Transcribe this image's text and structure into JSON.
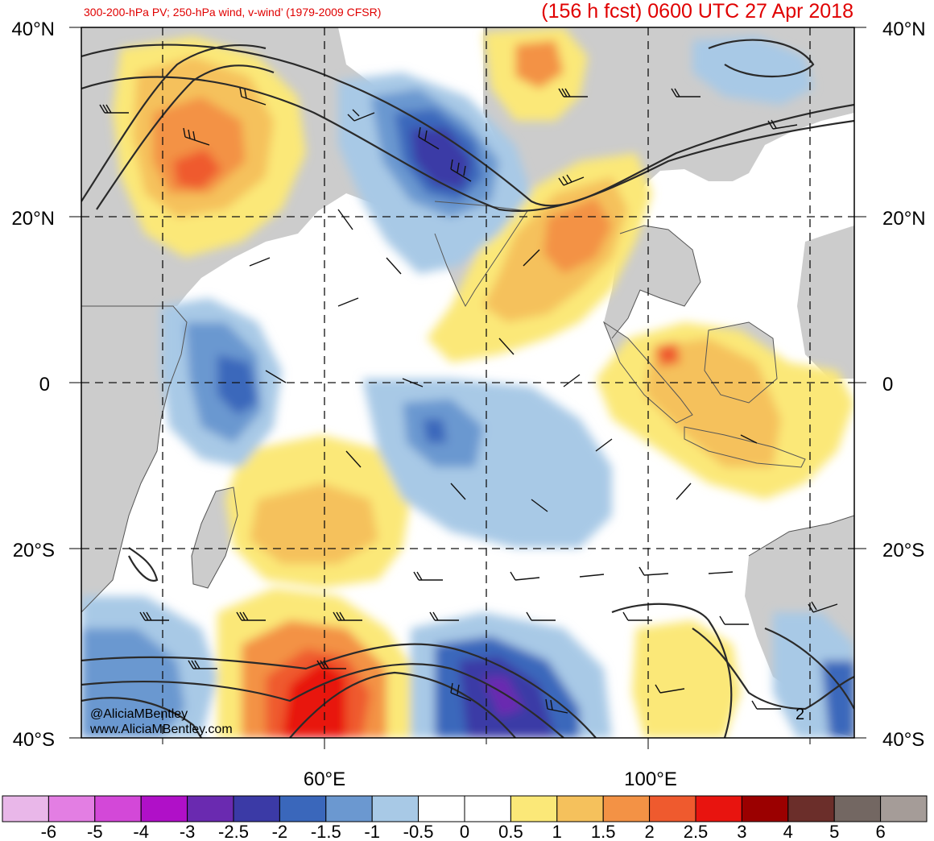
{
  "header": {
    "left_title": "300-200-hPa PV; 250-hPa wind, v-wind’ (1979-2009 CFSR)",
    "right_title": "(156 h fcst) 0600 UTC 27 Apr 2018"
  },
  "axes": {
    "lat_labels": [
      "40°N",
      "20°N",
      "0",
      "20°S",
      "40°S"
    ],
    "lon_labels": [
      "60°E",
      "100°E"
    ]
  },
  "contour_label": "2",
  "credits": {
    "handle": "@AliciaMBentley",
    "site": "www.AliciaMBentley.com"
  },
  "colorbar": {
    "labels": [
      "-6",
      "-5",
      "-4",
      "-3",
      "-2.5",
      "-2",
      "-1.5",
      "-1",
      "-0.5",
      "0",
      "0.5",
      "1",
      "1.5",
      "2",
      "2.5",
      "3",
      "4",
      "5",
      "6"
    ],
    "colors": [
      "#e9b7e9",
      "#e37ee3",
      "#d348d8",
      "#b010c8",
      "#6a2ab0",
      "#3b3aa6",
      "#3a67bb",
      "#6b98d0",
      "#a8c9e6",
      "#ffffff",
      "#ffffff",
      "#fbe878",
      "#f5c15c",
      "#f39245",
      "#ef5a2e",
      "#e8140f",
      "#9b0000",
      "#6b2e2a",
      "#736762",
      "#a59c98"
    ]
  },
  "map": {
    "land_color": "#cccccc",
    "ocean_color": "#ffffff"
  }
}
